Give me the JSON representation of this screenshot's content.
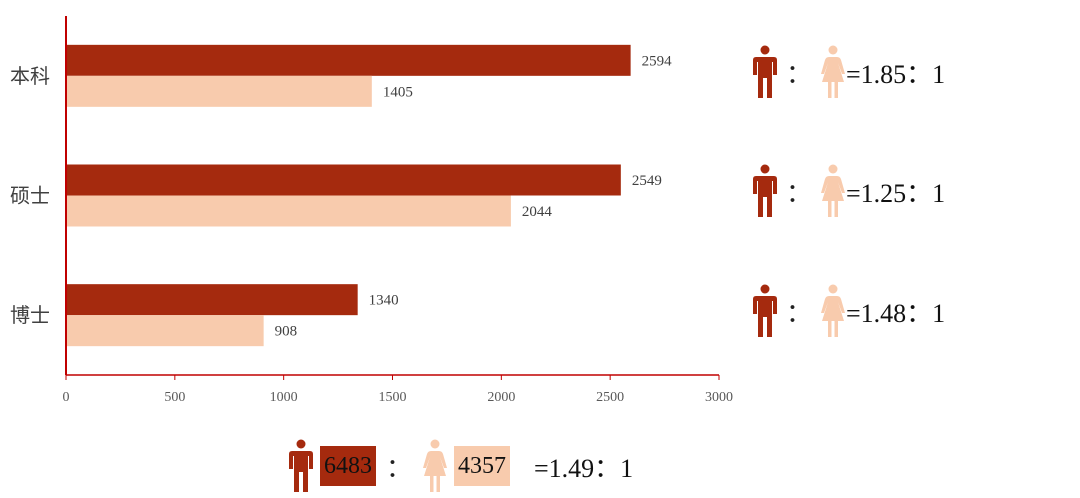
{
  "colors": {
    "male": "#a52a0e",
    "female": "#f8cbad",
    "axis": "#c00000"
  },
  "icons": {
    "male": "male-person-icon",
    "female": "female-person-icon"
  },
  "chart_data": {
    "type": "bar",
    "orientation": "horizontal",
    "categories": [
      "本科",
      "硕士",
      "博士"
    ],
    "series": [
      {
        "values": [
          2594,
          2549,
          1340
        ]
      },
      {
        "values": [
          1405,
          2044,
          908
        ]
      }
    ],
    "xlim": [
      0,
      3000
    ],
    "xticks": [
      0,
      500,
      1000,
      1500,
      2000,
      2500,
      3000
    ],
    "grid": false,
    "legend": "none"
  },
  "ratios": [
    {
      "colon": "：",
      "text": "=1.85：1"
    },
    {
      "colon": "：",
      "text": "=1.25：1"
    },
    {
      "colon": "：",
      "text": "=1.48：1"
    }
  ],
  "total": {
    "male": "6483",
    "colon": "：",
    "female": "4357",
    "text": "=1.49：1"
  }
}
